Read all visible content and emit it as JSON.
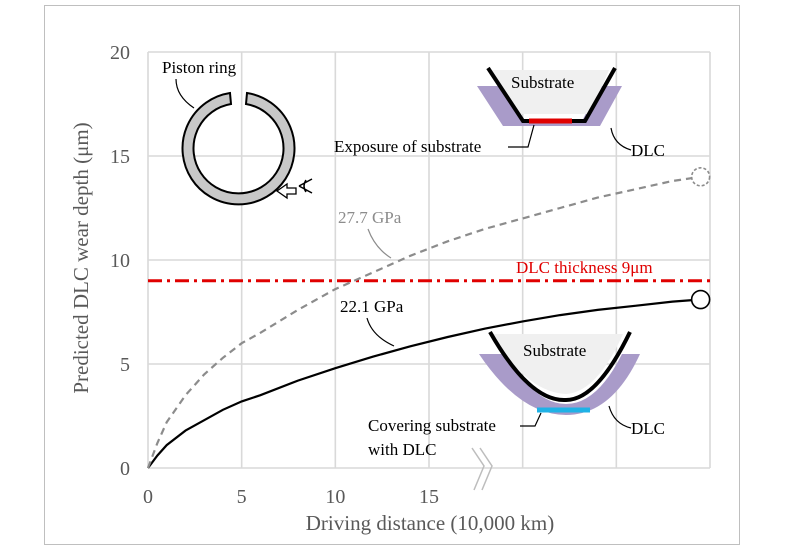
{
  "chart_data": {
    "type": "line",
    "xlabel": "Driving distance (10,000 km)",
    "ylabel": "Predicted DLC  wear depth (μm)",
    "xlim": [
      0,
      30
    ],
    "ylim": [
      0,
      20
    ],
    "x_ticks": [
      "0",
      "5",
      "10",
      "15"
    ],
    "y_ticks": [
      "0",
      "5",
      "10",
      "15",
      "20"
    ],
    "grid": true,
    "axis_break_on_x": true,
    "series": [
      {
        "name": "22.1 GPa",
        "color": "#000000",
        "style": "solid",
        "end_marker": "open-circle",
        "x": [
          0,
          0.5,
          1,
          2,
          3,
          4,
          5,
          6,
          8,
          10,
          12,
          14,
          16,
          18,
          20,
          22,
          24,
          26,
          28,
          29.5
        ],
        "y": [
          0,
          0.6,
          1.1,
          1.8,
          2.3,
          2.8,
          3.2,
          3.5,
          4.2,
          4.8,
          5.35,
          5.85,
          6.3,
          6.7,
          7.05,
          7.35,
          7.6,
          7.8,
          8.0,
          8.1
        ]
      },
      {
        "name": "27.7 GPa",
        "color": "#8c8c8c",
        "style": "dashed",
        "end_marker": "dashed-open-circle",
        "x": [
          0,
          0.5,
          1,
          2,
          3,
          4,
          5,
          6,
          8,
          10,
          12,
          14,
          16,
          18,
          20,
          22,
          24,
          26,
          28,
          29.5
        ],
        "y": [
          0,
          1.2,
          2.2,
          3.5,
          4.5,
          5.3,
          6.0,
          6.5,
          7.6,
          8.6,
          9.4,
          10.2,
          10.9,
          11.5,
          12.0,
          12.5,
          13.0,
          13.4,
          13.8,
          14.0
        ]
      }
    ],
    "reference_line": {
      "label": "DLC thickness 9μm",
      "y": 9,
      "color": "#e00000",
      "style": "dash-dot"
    }
  },
  "annotations": {
    "piston_ring": "Piston ring",
    "substrate_top": "Substrate",
    "exposure": "Exposure of substrate",
    "dlc_top": "DLC",
    "substrate_bottom": "Substrate",
    "covering_line1": "Covering substrate",
    "covering_line2": "with DLC",
    "dlc_bottom": "DLC"
  },
  "colors": {
    "dlc_layer": "#a99bc9",
    "substrate_fill": "#f0f0f0",
    "exposure_bar": "#e00000",
    "covering_bar": "#1fb2e6",
    "ring_fill": "#c8c8c8"
  }
}
